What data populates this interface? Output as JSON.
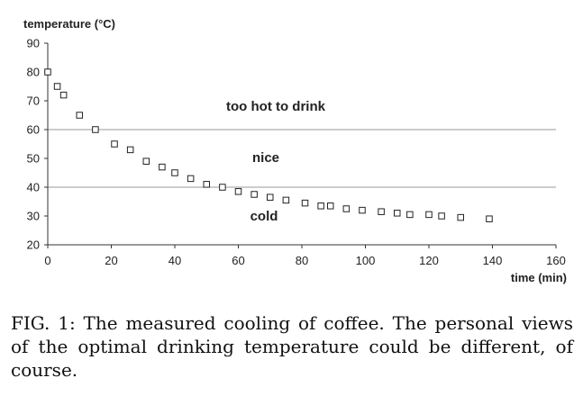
{
  "chart_data": {
    "type": "scatter",
    "ylabel": "temperature (°C)",
    "xlabel": "time (min)",
    "xlim": [
      0,
      160
    ],
    "ylim": [
      20,
      90
    ],
    "xticks": [
      0,
      20,
      40,
      60,
      80,
      100,
      120,
      140,
      160
    ],
    "yticks": [
      20,
      30,
      40,
      50,
      60,
      70,
      80,
      90
    ],
    "reference_lines": [
      40,
      60
    ],
    "annotations": [
      "too hot to drink",
      "nice",
      "cold"
    ],
    "grid": false,
    "marker": "open-square",
    "points": [
      {
        "x": 0,
        "y": 80
      },
      {
        "x": 3,
        "y": 75
      },
      {
        "x": 5,
        "y": 72
      },
      {
        "x": 10,
        "y": 65
      },
      {
        "x": 15,
        "y": 60
      },
      {
        "x": 21,
        "y": 55
      },
      {
        "x": 26,
        "y": 53
      },
      {
        "x": 31,
        "y": 49
      },
      {
        "x": 36,
        "y": 47
      },
      {
        "x": 40,
        "y": 45
      },
      {
        "x": 45,
        "y": 43
      },
      {
        "x": 50,
        "y": 41
      },
      {
        "x": 55,
        "y": 40
      },
      {
        "x": 60,
        "y": 38.5
      },
      {
        "x": 65,
        "y": 37.5
      },
      {
        "x": 70,
        "y": 36.5
      },
      {
        "x": 75,
        "y": 35.5
      },
      {
        "x": 81,
        "y": 34.5
      },
      {
        "x": 86,
        "y": 33.5
      },
      {
        "x": 89,
        "y": 33.5
      },
      {
        "x": 94,
        "y": 32.5
      },
      {
        "x": 99,
        "y": 32
      },
      {
        "x": 105,
        "y": 31.5
      },
      {
        "x": 110,
        "y": 31
      },
      {
        "x": 114,
        "y": 30.5
      },
      {
        "x": 120,
        "y": 30.5
      },
      {
        "x": 124,
        "y": 30
      },
      {
        "x": 130,
        "y": 29.5
      },
      {
        "x": 139,
        "y": 29
      }
    ]
  },
  "caption": "FIG. 1: The measured cooling of coffee. The personal views of the optimal drinking temperature could be different, of course."
}
